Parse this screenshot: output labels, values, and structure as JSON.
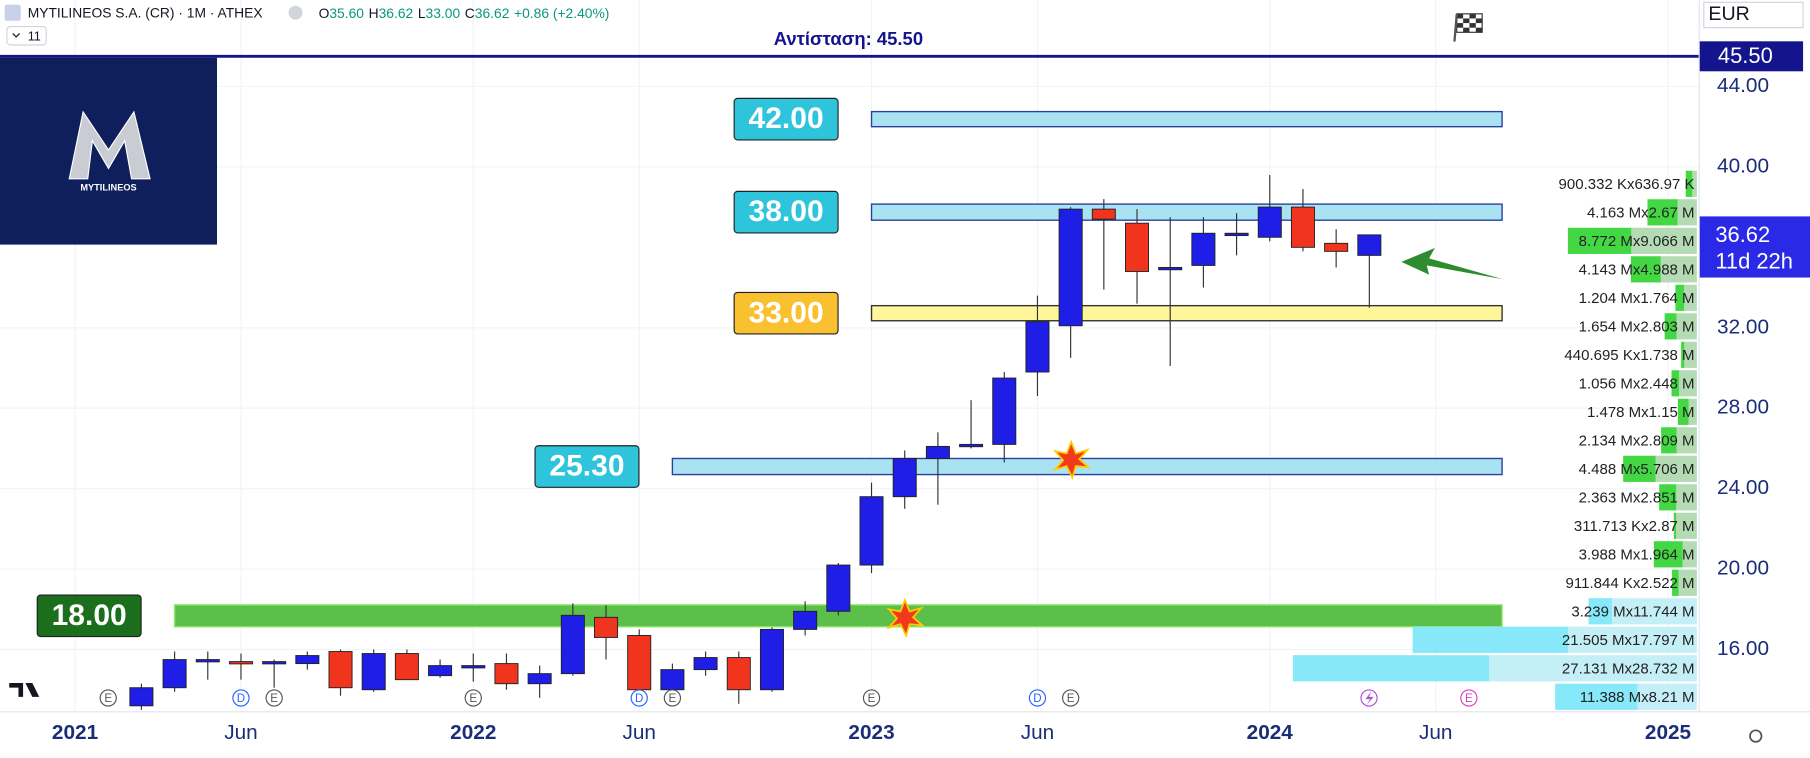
{
  "header": {
    "symbol": "MYTILINEOS S.A. (CR) · 1M · ATHEX",
    "ohlc": [
      {
        "k": "O",
        "v": "35.60"
      },
      {
        "k": "H",
        "v": "36.62"
      },
      {
        "k": "L",
        "v": "33.00"
      },
      {
        "k": "C",
        "v": "36.62"
      }
    ],
    "change": "+0.86 (+2.40%)",
    "interval_count": "11",
    "currency": "EUR"
  },
  "logo": {
    "text": "MYTILINEOS"
  },
  "chart_data": {
    "type": "candlestick",
    "up_color": "#1e1ee6",
    "down_color": "#f0341e",
    "wick_color": "#333333",
    "x": [
      "2021-03",
      "2021-04",
      "2021-05",
      "2021-06",
      "2021-07",
      "2021-08",
      "2021-09",
      "2021-10",
      "2021-11",
      "2021-12",
      "2022-01",
      "2022-02",
      "2022-03",
      "2022-04",
      "2022-05",
      "2022-06",
      "2022-07",
      "2022-08",
      "2022-09",
      "2022-10",
      "2022-11",
      "2022-12",
      "2023-01",
      "2023-02",
      "2023-03",
      "2023-04",
      "2023-05",
      "2023-06",
      "2023-07",
      "2023-08",
      "2023-09",
      "2023-10",
      "2023-11",
      "2023-12",
      "2024-01",
      "2024-02",
      "2024-03",
      "2024-04"
    ],
    "open": [
      13.2,
      14.1,
      15.4,
      15.4,
      15.3,
      15.3,
      15.9,
      14.0,
      15.8,
      14.7,
      15.2,
      15.3,
      14.3,
      14.8,
      17.6,
      16.7,
      14.0,
      15.0,
      15.6,
      14.0,
      17.0,
      17.9,
      20.2,
      23.6,
      25.5,
      26.1,
      26.2,
      29.8,
      32.1,
      37.9,
      37.2,
      34.9,
      35.1,
      36.6,
      36.5,
      38.0,
      36.2,
      35.6
    ],
    "high": [
      14.3,
      15.9,
      15.9,
      15.8,
      15.5,
      15.9,
      16.0,
      16.0,
      16.0,
      15.5,
      15.8,
      15.8,
      15.2,
      18.3,
      18.2,
      17.0,
      15.3,
      15.9,
      15.9,
      17.1,
      18.4,
      20.3,
      24.3,
      25.9,
      26.8,
      28.4,
      29.8,
      33.6,
      38.0,
      38.4,
      37.9,
      37.5,
      37.5,
      37.7,
      39.6,
      38.9,
      36.9,
      36.62
    ],
    "low": [
      13.0,
      13.9,
      14.5,
      14.5,
      14.1,
      15.0,
      13.7,
      13.9,
      14.5,
      14.6,
      14.4,
      14.0,
      13.6,
      14.7,
      15.5,
      13.6,
      13.7,
      14.7,
      13.3,
      13.9,
      16.7,
      17.7,
      19.8,
      23.0,
      23.2,
      26.0,
      25.3,
      28.6,
      30.5,
      33.9,
      33.2,
      30.1,
      34.0,
      35.6,
      36.3,
      35.8,
      35.0,
      33.0
    ],
    "close": [
      14.1,
      15.5,
      15.5,
      15.3,
      15.4,
      15.7,
      14.1,
      15.8,
      14.5,
      15.2,
      15.2,
      14.3,
      14.8,
      17.7,
      16.6,
      14.0,
      15.0,
      15.6,
      14.0,
      17.0,
      17.9,
      20.2,
      23.6,
      25.5,
      26.1,
      26.2,
      29.5,
      32.3,
      37.9,
      37.4,
      34.8,
      35.0,
      36.7,
      36.7,
      38.0,
      36.0,
      35.8,
      36.62
    ],
    "xlim": [
      "2020-11",
      "2025-02"
    ],
    "xticks": [
      {
        "value": "2021-01",
        "label": "2021"
      },
      {
        "value": "2021-06",
        "label": "Jun"
      },
      {
        "value": "2022-01",
        "label": "2022"
      },
      {
        "value": "2022-06",
        "label": "Jun"
      },
      {
        "value": "2023-01",
        "label": "2023"
      },
      {
        "value": "2023-06",
        "label": "Jun"
      },
      {
        "value": "2024-01",
        "label": "2024"
      },
      {
        "value": "2024-06",
        "label": "Jun"
      },
      {
        "value": "2025-01",
        "label": "2025"
      }
    ],
    "ylim": [
      12.9,
      48.3
    ],
    "yticks": [
      {
        "value": 16,
        "label": "16.00"
      },
      {
        "value": 20,
        "label": "20.00"
      },
      {
        "value": 24,
        "label": "24.00"
      },
      {
        "value": 28,
        "label": "28.00"
      },
      {
        "value": 32,
        "label": "32.00"
      },
      {
        "value": 40,
        "label": "40.00"
      },
      {
        "value": 44,
        "label": "44.00"
      }
    ],
    "grid": true,
    "resistance": {
      "value": 45.5,
      "label": "Αντίσταση: 45.50",
      "axis_label": "45.50",
      "color": "#14148c"
    },
    "current": {
      "label": "36.62",
      "countdown": "11d 22h",
      "color": "#2a2ae6"
    },
    "zones": [
      {
        "label": "42.00",
        "low": 42.0,
        "high": 42.75,
        "from": "2023-01",
        "to": "2024-08",
        "fill": "#a9e3f2",
        "stroke": "#2b3f9e",
        "label_fill": "#2ec4dc"
      },
      {
        "label": "38.00",
        "low": 37.35,
        "high": 38.15,
        "from": "2023-01",
        "to": "2024-08",
        "fill": "#a9e3f2",
        "stroke": "#2b3f9e",
        "label_fill": "#2ec4dc"
      },
      {
        "label": "33.00",
        "low": 32.35,
        "high": 33.1,
        "from": "2023-01",
        "to": "2024-08",
        "fill": "#fff59a",
        "stroke": "#333333",
        "label_fill": "#f9c030"
      },
      {
        "label": "25.30",
        "low": 24.7,
        "high": 25.5,
        "from": "2022-07",
        "to": "2024-08",
        "fill": "#a9e3f2",
        "stroke": "#2b3f9e",
        "label_fill": "#2ec4dc"
      },
      {
        "label": "18.00",
        "low": 17.13,
        "high": 18.22,
        "from": "2021-04",
        "to": "2024-08",
        "fill": "#5cbf4a",
        "stroke": "#8ee86a",
        "label_fill": "#1b6e1b"
      }
    ],
    "events": [
      {
        "x": "2021-02",
        "label": "E",
        "color": "#555555"
      },
      {
        "x": "2021-06",
        "label": "D",
        "color": "#2962ff"
      },
      {
        "x": "2021-07",
        "label": "E",
        "color": "#555555"
      },
      {
        "x": "2022-01",
        "label": "E",
        "color": "#555555"
      },
      {
        "x": "2022-06",
        "label": "D",
        "color": "#2962ff"
      },
      {
        "x": "2022-07",
        "label": "E",
        "color": "#555555"
      },
      {
        "x": "2023-01",
        "label": "E",
        "color": "#555555"
      },
      {
        "x": "2023-06",
        "label": "D",
        "color": "#2962ff"
      },
      {
        "x": "2023-07",
        "label": "E",
        "color": "#555555"
      },
      {
        "x": "2024-07",
        "label": "E",
        "color": "#e040c0"
      }
    ],
    "profile": {
      "separator": "x",
      "rows": [
        {
          "up": 900332,
          "up_label": "900.332 K",
          "down": 636970,
          "down_label": "636.97 K",
          "colors": [
            "#43d843",
            "#b5dbb5"
          ]
        },
        {
          "up": 4163000,
          "up_label": "4.163 M",
          "down": 2670000,
          "down_label": "2.67 M",
          "colors": [
            "#43d843",
            "#b5dbb5"
          ]
        },
        {
          "up": 8772000,
          "up_label": "8.772 M",
          "down": 9066000,
          "down_label": "9.066 M",
          "colors": [
            "#43d843",
            "#b5dbb5"
          ]
        },
        {
          "up": 4143000,
          "up_label": "4.143 M",
          "down": 4988000,
          "down_label": "4.988 M",
          "colors": [
            "#43d843",
            "#b5dbb5"
          ]
        },
        {
          "up": 1204000,
          "up_label": "1.204 M",
          "down": 1764000,
          "down_label": "1.764 M",
          "colors": [
            "#43d843",
            "#b5dbb5"
          ]
        },
        {
          "up": 1654000,
          "up_label": "1.654 M",
          "down": 2803000,
          "down_label": "2.803 M",
          "colors": [
            "#43d843",
            "#b5dbb5"
          ]
        },
        {
          "up": 440695,
          "up_label": "440.695 K",
          "down": 1738000,
          "down_label": "1.738 M",
          "colors": [
            "#43d843",
            "#b5dbb5"
          ]
        },
        {
          "up": 1056000,
          "up_label": "1.056 M",
          "down": 2448000,
          "down_label": "2.448 M",
          "colors": [
            "#43d843",
            "#b5dbb5"
          ]
        },
        {
          "up": 1478000,
          "up_label": "1.478 M",
          "down": 1150000,
          "down_label": "1.15 M",
          "colors": [
            "#43d843",
            "#b5dbb5"
          ]
        },
        {
          "up": 2134000,
          "up_label": "2.134 M",
          "down": 2809000,
          "down_label": "2.809 M",
          "colors": [
            "#43d843",
            "#b5dbb5"
          ]
        },
        {
          "up": 4488000,
          "up_label": "4.488 M",
          "down": 5706000,
          "down_label": "5.706 M",
          "colors": [
            "#43d843",
            "#b5dbb5"
          ]
        },
        {
          "up": 2363000,
          "up_label": "2.363 M",
          "down": 2851000,
          "down_label": "2.851 M",
          "colors": [
            "#43d843",
            "#b5dbb5"
          ]
        },
        {
          "up": 311713,
          "up_label": "311.713 K",
          "down": 2870000,
          "down_label": "2.87 M",
          "colors": [
            "#43d843",
            "#b5dbb5"
          ]
        },
        {
          "up": 3988000,
          "up_label": "3.988 M",
          "down": 1964000,
          "down_label": "1.964 M",
          "colors": [
            "#43d843",
            "#b5dbb5"
          ]
        },
        {
          "up": 911844,
          "up_label": "911.844 K",
          "down": 2522000,
          "down_label": "2.522 M",
          "colors": [
            "#43d843",
            "#b5dbb5"
          ]
        },
        {
          "up": 3239000,
          "up_label": "3.239 M",
          "down": 11744000,
          "down_label": "11.744 M",
          "colors": [
            "#86e8f8",
            "#c5eff7"
          ]
        },
        {
          "up": 21505000,
          "up_label": "21.505 M",
          "down": 17797000,
          "down_label": "17.797 M",
          "colors": [
            "#86e8f8",
            "#c5eff7"
          ]
        },
        {
          "up": 27131000,
          "up_label": "27.131 M",
          "down": 28732000,
          "down_label": "28.732 M",
          "colors": [
            "#86e8f8",
            "#c5eff7"
          ]
        },
        {
          "up": 11388000,
          "up_label": "11.388 M",
          "down": 8210000,
          "down_label": "8.21 M",
          "colors": [
            "#86e8f8",
            "#c5eff7"
          ]
        }
      ]
    }
  }
}
